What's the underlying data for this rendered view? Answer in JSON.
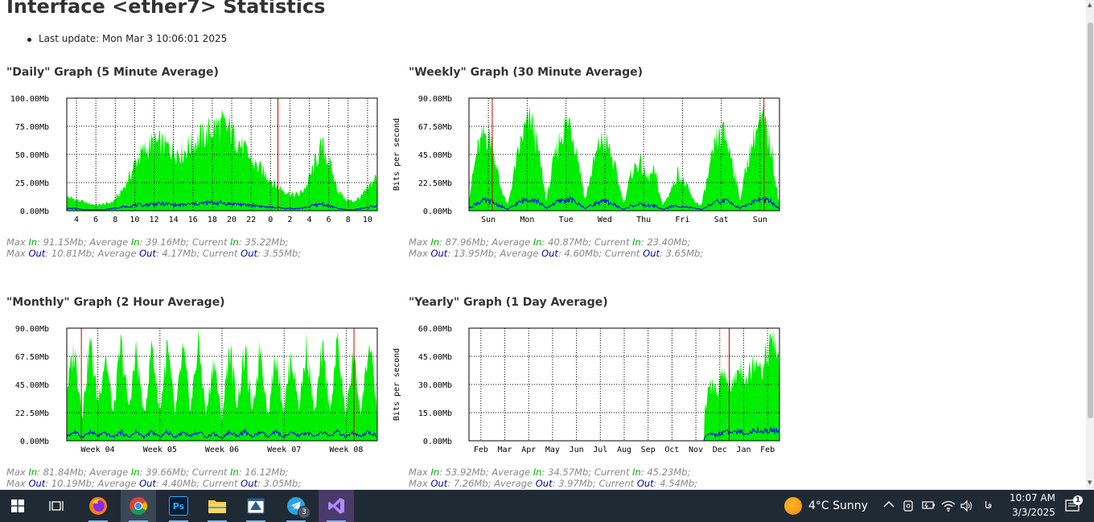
{
  "page": {
    "title": "Interface <ether7> Statistics",
    "last_update": "Last update: Mon Mar 3 10:06:01 2025"
  },
  "graphs": {
    "daily": {
      "title": "\"Daily\" Graph (5 Minute Average)",
      "stats_in": {
        "max": "91.15Mb",
        "avg": "39.16Mb",
        "cur": "35.22Mb"
      },
      "stats_out": {
        "max": "10.81Mb",
        "avg": "4.17Mb",
        "cur": "3.55Mb"
      }
    },
    "weekly": {
      "title": "\"Weekly\" Graph (30 Minute Average)",
      "stats_in": {
        "max": "87.96Mb",
        "avg": "40.87Mb",
        "cur": "23.40Mb"
      },
      "stats_out": {
        "max": "13.95Mb",
        "avg": "4.60Mb",
        "cur": "3.65Mb"
      }
    },
    "monthly": {
      "title": "\"Monthly\" Graph (2 Hour Average)",
      "stats_in": {
        "max": "81.84Mb",
        "avg": "39.66Mb",
        "cur": "16.12Mb"
      },
      "stats_out": {
        "max": "10.19Mb",
        "avg": "4.40Mb",
        "cur": "3.05Mb"
      }
    },
    "yearly": {
      "title": "\"Yearly\" Graph (1 Day Average)",
      "stats_in": {
        "max": "53.92Mb",
        "avg": "34.57Mb",
        "cur": "45.23Mb"
      },
      "stats_out": {
        "max": "7.26Mb",
        "avg": "3.97Mb",
        "cur": "4.54Mb"
      }
    }
  },
  "labels": {
    "max": "Max",
    "average": "Average",
    "current": "Current",
    "in": "In",
    "out": "Out"
  },
  "chart_data": [
    {
      "type": "area",
      "id": "daily",
      "ylabel": "",
      "y_ticks": [
        "100.00Mb",
        "75.00Mb",
        "50.00Mb",
        "25.00Mb",
        "0.00Mb"
      ],
      "ylim": [
        0,
        100
      ],
      "x_ticks": [
        "4",
        "6",
        "8",
        "10",
        "12",
        "14",
        "16",
        "18",
        "20",
        "22",
        "0",
        "2",
        "4",
        "6",
        "8",
        "10"
      ],
      "marker_positions": [
        0.68
      ],
      "series": [
        {
          "name": "In",
          "color": "#00ee00",
          "profile": [
            12,
            10,
            8,
            6,
            5,
            6,
            8,
            16,
            28,
            44,
            52,
            58,
            58,
            55,
            52,
            50,
            58,
            62,
            66,
            72,
            74,
            70,
            62,
            52,
            42,
            36,
            30,
            22,
            18,
            14,
            14,
            22,
            40,
            56,
            40,
            18,
            10,
            8,
            12,
            20,
            30
          ]
        },
        {
          "name": "Out",
          "color": "#0000ff",
          "profile": [
            2,
            2,
            1,
            1,
            1,
            1,
            2,
            3,
            4,
            5,
            5,
            6,
            6,
            6,
            5,
            5,
            6,
            6,
            7,
            7,
            7,
            6,
            6,
            5,
            5,
            4,
            3,
            3,
            2,
            2,
            2,
            3,
            5,
            6,
            4,
            2,
            1,
            1,
            2,
            3,
            4
          ]
        }
      ]
    },
    {
      "type": "area",
      "id": "weekly",
      "ylabel": "Bits per second",
      "y_ticks": [
        "90.00Mb",
        "67.50Mb",
        "45.00Mb",
        "22.50Mb",
        "0.00Mb"
      ],
      "ylim": [
        0,
        90
      ],
      "x_ticks": [
        "Sun",
        "Mon",
        "Tue",
        "Wed",
        "Thu",
        "Fri",
        "Sat",
        "Sun"
      ],
      "marker_positions": [
        0.075,
        0.95
      ],
      "series": [
        {
          "name": "In",
          "color": "#00ee00",
          "profile": [
            10,
            45,
            60,
            55,
            20,
            4,
            35,
            60,
            72,
            45,
            8,
            40,
            62,
            70,
            45,
            8,
            35,
            55,
            50,
            30,
            6,
            30,
            38,
            25,
            30,
            4,
            15,
            30,
            20,
            8,
            4,
            30,
            55,
            60,
            40,
            8,
            40,
            62,
            70,
            50,
            8
          ]
        },
        {
          "name": "Out",
          "color": "#0000ff",
          "profile": [
            2,
            6,
            8,
            7,
            4,
            1,
            5,
            8,
            10,
            7,
            2,
            6,
            8,
            9,
            6,
            2,
            5,
            7,
            7,
            4,
            1,
            4,
            5,
            4,
            4,
            1,
            3,
            4,
            3,
            2,
            1,
            4,
            7,
            8,
            6,
            2,
            5,
            8,
            9,
            7,
            2
          ]
        }
      ]
    },
    {
      "type": "area",
      "id": "monthly",
      "ylabel": "",
      "y_ticks": [
        "90.00Mb",
        "67.50Mb",
        "45.00Mb",
        "22.50Mb",
        "0.00Mb"
      ],
      "ylim": [
        0,
        90
      ],
      "x_ticks": [
        "Week 04",
        "Week 05",
        "Week 06",
        "Week 07",
        "Week 08"
      ],
      "marker_positions": [
        0.047,
        0.925
      ],
      "series": [
        {
          "name": "In",
          "color": "#00ee00",
          "profile": [
            40,
            72,
            20,
            78,
            30,
            68,
            20,
            75,
            25,
            70,
            18,
            76,
            22,
            72,
            20,
            70,
            25,
            78,
            20,
            66,
            15,
            74,
            28,
            70,
            20,
            76,
            18,
            72,
            22,
            68,
            26,
            74,
            20,
            70,
            24,
            78,
            18,
            66,
            22,
            76,
            30
          ]
        },
        {
          "name": "Out",
          "color": "#0000ff",
          "profile": [
            4,
            7,
            3,
            7,
            4,
            6,
            3,
            7,
            3,
            7,
            3,
            7,
            3,
            7,
            3,
            7,
            4,
            7,
            3,
            6,
            2,
            7,
            4,
            7,
            3,
            7,
            3,
            7,
            3,
            6,
            4,
            7,
            3,
            7,
            4,
            7,
            3,
            6,
            3,
            7,
            4
          ]
        }
      ]
    },
    {
      "type": "area",
      "id": "yearly",
      "ylabel": "Bits per second",
      "y_ticks": [
        "60.00Mb",
        "45.00Mb",
        "30.00Mb",
        "15.00Mb",
        "0.00Mb"
      ],
      "ylim": [
        0,
        60
      ],
      "x_ticks": [
        "Feb",
        "Mar",
        "Apr",
        "May",
        "Jun",
        "Jul",
        "Aug",
        "Sep",
        "Oct",
        "Nov",
        "Dec",
        "Jan",
        "Feb"
      ],
      "marker_positions": [
        0.838
      ],
      "data_start": 0.76,
      "series": [
        {
          "name": "In",
          "color": "#00ee00",
          "profile": [
            0,
            0,
            0,
            0,
            0,
            0,
            0,
            0,
            0,
            0,
            0,
            0,
            0,
            0,
            0,
            0,
            0,
            0,
            0,
            0,
            0,
            0,
            0,
            0,
            0,
            0,
            0,
            0,
            0,
            0,
            0,
            30,
            25,
            35,
            28,
            40,
            32,
            45,
            38,
            52,
            45
          ]
        },
        {
          "name": "Out",
          "color": "#0000ff",
          "profile": [
            0,
            0,
            0,
            0,
            0,
            0,
            0,
            0,
            0,
            0,
            0,
            0,
            0,
            0,
            0,
            0,
            0,
            0,
            0,
            0,
            0,
            0,
            0,
            0,
            0,
            0,
            0,
            0,
            0,
            0,
            0,
            4,
            3,
            5,
            4,
            5,
            4,
            6,
            5,
            6,
            5
          ]
        }
      ]
    }
  ],
  "taskbar": {
    "icons": [
      "windows-start-icon",
      "task-view-icon",
      "firefox-icon",
      "chrome-icon",
      "photoshop-icon",
      "file-explorer-icon",
      "winbox-icon",
      "telegram-icon",
      "visual-studio-icon"
    ],
    "telegram_badge": "3",
    "photoshop_label": "Ps",
    "weather": "4°C  Sunny",
    "lang": "فا",
    "time": "10:07 AM",
    "date": "3/3/2025",
    "notification_count": "1"
  }
}
